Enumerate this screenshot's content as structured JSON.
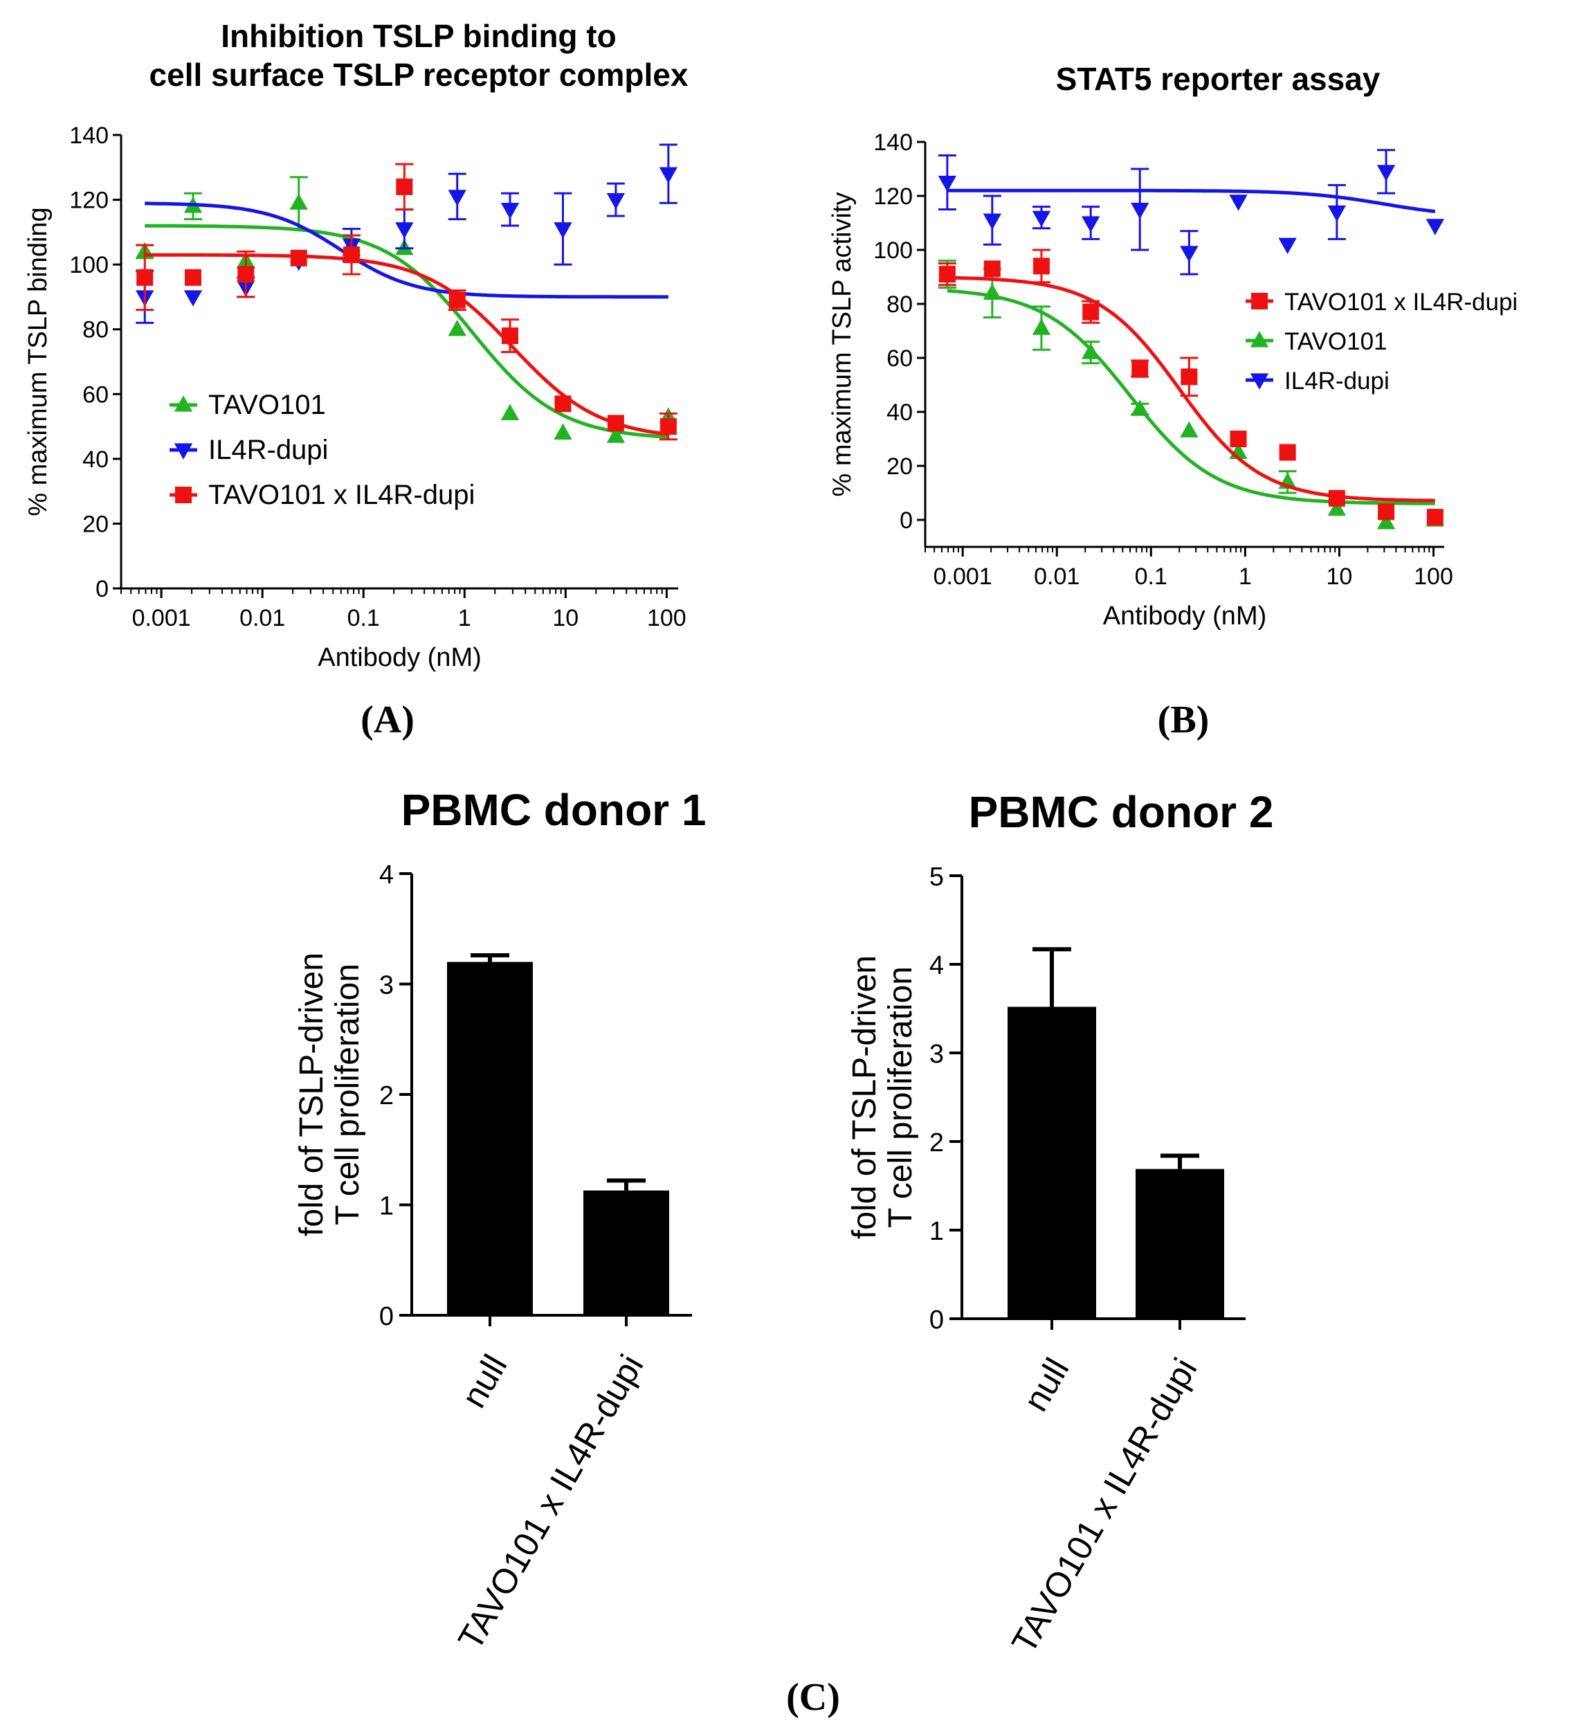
{
  "figure": {
    "panels": [
      "(A)",
      "(B)",
      "(C)"
    ]
  },
  "colors": {
    "green": "#22b322",
    "blue": "#1515e6",
    "red": "#ee1111",
    "black": "#000000"
  },
  "chart_data": [
    {
      "id": "A",
      "type": "scatter",
      "title": "Inhibition TSLP binding to cell surface TSLP receptor complex",
      "title_lines": [
        "Inhibition TSLP binding to",
        "cell surface TSLP receptor complex"
      ],
      "xlabel": "Antibody (nM)",
      "ylabel": "% maximum TSLP binding",
      "xscale": "log",
      "xlim": [
        0.0004,
        130
      ],
      "ylim": [
        0,
        140
      ],
      "yticks": [
        0,
        20,
        40,
        60,
        80,
        100,
        120,
        140
      ],
      "xticks": [
        0.001,
        0.01,
        0.1,
        1,
        10,
        100
      ],
      "xtick_labels": [
        "0.001",
        "0.01",
        "0.1",
        "1",
        "10",
        "100"
      ],
      "legend_position": "lower-left",
      "legend_order": [
        0,
        1,
        2
      ],
      "series": [
        {
          "name": "TAVO101",
          "color": "green",
          "marker": "triangle-up",
          "x": [
            0.000686,
            0.00206,
            0.00686,
            0.0229,
            0.0762,
            0.254,
            0.847,
            2.82,
            9.41,
            31.4,
            104
          ],
          "y": [
            104,
            118,
            101,
            119,
            106,
            105,
            80,
            54,
            48,
            47,
            53
          ],
          "err": [
            2,
            4,
            2,
            8,
            3,
            0,
            0,
            0,
            0,
            0,
            0
          ],
          "fit": {
            "bottom": 46,
            "top": 112,
            "ic50": 1.2,
            "hill": 1.0
          }
        },
        {
          "name": "IL4R-dupi",
          "color": "blue",
          "marker": "triangle-down",
          "x": [
            0.000686,
            0.00206,
            0.00686,
            0.0229,
            0.0762,
            0.254,
            0.847,
            2.82,
            9.41,
            31.4,
            104
          ],
          "y": [
            90,
            90,
            93,
            101,
            106,
            111,
            121,
            117,
            111,
            120,
            128
          ],
          "err": [
            8,
            0,
            3,
            0,
            5,
            6,
            7,
            5,
            11,
            5,
            9
          ],
          "fit": {
            "bottom": 90,
            "top": 119,
            "ic50": 0.06,
            "hill": 1.2
          }
        },
        {
          "name": "TAVO101 x IL4R-dupi",
          "color": "red",
          "marker": "square",
          "x": [
            0.000686,
            0.00206,
            0.00686,
            0.0229,
            0.0762,
            0.254,
            0.847,
            2.82,
            9.41,
            31.4,
            104
          ],
          "y": [
            96,
            96,
            97,
            102,
            103,
            124,
            89,
            78,
            57,
            51,
            50
          ],
          "err": [
            10,
            0,
            7,
            0,
            6,
            7,
            3,
            5,
            0,
            0,
            4
          ],
          "fit": {
            "bottom": 46,
            "top": 103,
            "ic50": 3.0,
            "hill": 1.0
          }
        }
      ]
    },
    {
      "id": "B",
      "type": "scatter",
      "title": "STAT5 reporter assay",
      "title_lines": [
        "STAT5 reporter assay"
      ],
      "xlabel": "Antibody (nM)",
      "ylabel": "% maximum TSLP activity",
      "xscale": "log",
      "xlim": [
        0.0004,
        130
      ],
      "ylim": [
        -10,
        140
      ],
      "yticks": [
        0,
        20,
        40,
        60,
        80,
        100,
        120,
        140
      ],
      "xticks": [
        0.001,
        0.01,
        0.1,
        1,
        10,
        100
      ],
      "xtick_labels": [
        "0.001",
        "0.01",
        "0.1",
        "1",
        "10",
        "100"
      ],
      "legend_position": "right",
      "legend_order": [
        2,
        0,
        1
      ],
      "series": [
        {
          "name": "TAVO101",
          "color": "green",
          "marker": "triangle-up",
          "x": [
            0.000686,
            0.00206,
            0.00686,
            0.0229,
            0.0762,
            0.254,
            0.847,
            2.82,
            9.41,
            31.4,
            104
          ],
          "y": [
            91,
            84,
            71,
            62,
            41,
            33,
            25,
            14,
            4,
            -1,
            0
          ],
          "err": [
            5,
            9,
            8,
            4,
            2,
            0,
            0,
            4,
            0,
            0,
            0
          ],
          "fit": {
            "bottom": 6,
            "top": 86,
            "ic50": 0.06,
            "hill": 0.95
          }
        },
        {
          "name": "IL4R-dupi",
          "color": "blue",
          "marker": "triangle-down",
          "x": [
            0.000686,
            0.00206,
            0.00686,
            0.0229,
            0.0762,
            0.254,
            0.847,
            2.82,
            9.41,
            31.4,
            104
          ],
          "y": [
            125,
            111,
            112,
            110,
            115,
            99,
            118,
            102,
            114,
            129,
            109
          ],
          "err": [
            10,
            9,
            4,
            6,
            15,
            8,
            0,
            0,
            10,
            8,
            0
          ],
          "fit": {
            "bottom": 112,
            "top": 122,
            "ic50": 30,
            "hill": 1.0
          }
        },
        {
          "name": "TAVO101 x IL4R-dupi",
          "color": "red",
          "marker": "square",
          "x": [
            0.000686,
            0.00206,
            0.00686,
            0.0229,
            0.0762,
            0.254,
            0.847,
            2.82,
            9.41,
            31.4,
            104
          ],
          "y": [
            91,
            93,
            94,
            77,
            56,
            53,
            30,
            25,
            8,
            3,
            1
          ],
          "err": [
            4,
            0,
            6,
            4,
            3,
            7,
            0,
            0,
            0,
            0,
            0
          ],
          "fit": {
            "bottom": 7,
            "top": 90,
            "ic50": 0.2,
            "hill": 1.0
          }
        }
      ]
    },
    {
      "id": "C1",
      "type": "bar",
      "title": "PBMC donor 1",
      "ylabel_lines": [
        "fold of TSLP-driven",
        "T cell proliferation"
      ],
      "categories": [
        "null",
        "TAVO101 x IL4R-dupi"
      ],
      "values": [
        3.2,
        1.13
      ],
      "err": [
        0.06,
        0.09
      ],
      "ylim": [
        0,
        4
      ],
      "yticks": [
        0,
        1,
        2,
        3,
        4
      ]
    },
    {
      "id": "C2",
      "type": "bar",
      "title": "PBMC donor 2",
      "ylabel_lines": [
        "fold of TSLP-driven",
        "T cell proliferation"
      ],
      "categories": [
        "null",
        "TAVO101 x IL4R-dupi"
      ],
      "values": [
        3.52,
        1.69
      ],
      "err": [
        0.65,
        0.15
      ],
      "ylim": [
        0,
        5
      ],
      "yticks": [
        0,
        1,
        2,
        3,
        4,
        5
      ]
    }
  ]
}
